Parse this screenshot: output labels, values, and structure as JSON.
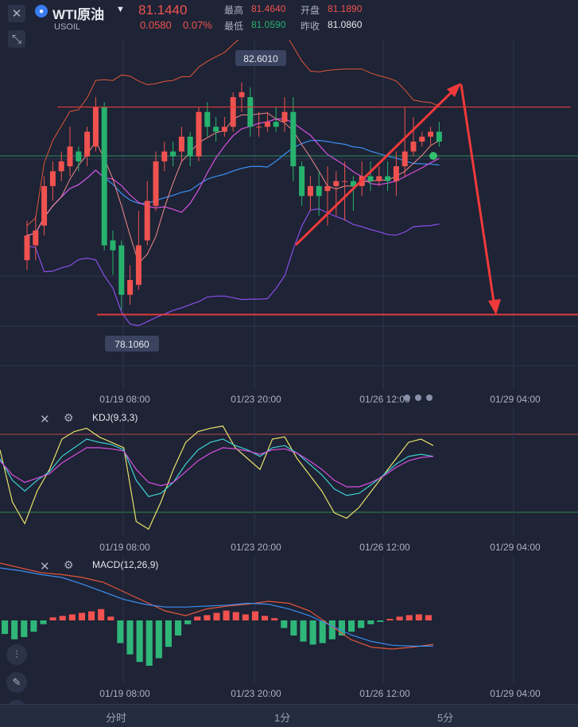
{
  "header": {
    "symbol": "WTI原油",
    "code": "USOIL",
    "price": "81.1440",
    "change": "0.0580",
    "change_pct": "0.07%",
    "high_label": "最高",
    "high": "81.4640",
    "open_label": "开盘",
    "open": "81.1890",
    "low_label": "最低",
    "low": "81.0590",
    "prev_label": "昨收",
    "prev": "81.0860"
  },
  "tabs": [
    "分时",
    "1分",
    "5分"
  ],
  "colors": {
    "up": "#f0524f",
    "down": "#27b26e",
    "bg": "#1e2335"
  },
  "chart_data": [
    {
      "type": "candlestick",
      "name": "main",
      "x_ticks": [
        "01/19 08:00",
        "01/23 20:00",
        "01/26 12:00",
        "01/29 04:00"
      ],
      "annotations": {
        "max_label": "82.6010",
        "min_label": "78.1060"
      },
      "horizontal_levels": {
        "upper": 82.4,
        "lower": 78.2
      },
      "candles": [
        {
          "o": 79.3,
          "c": 79.8,
          "h": 80.1,
          "l": 79.1
        },
        {
          "o": 79.6,
          "c": 79.9,
          "h": 80.2,
          "l": 79.3
        },
        {
          "o": 80.0,
          "c": 80.8,
          "h": 81.0,
          "l": 79.8
        },
        {
          "o": 80.8,
          "c": 81.1,
          "h": 81.3,
          "l": 80.5
        },
        {
          "o": 81.1,
          "c": 81.3,
          "h": 81.5,
          "l": 80.9
        },
        {
          "o": 81.2,
          "c": 81.6,
          "h": 82.0,
          "l": 81.0
        },
        {
          "o": 81.5,
          "c": 81.3,
          "h": 81.6,
          "l": 81.1
        },
        {
          "o": 81.4,
          "c": 81.9,
          "h": 82.0,
          "l": 81.2
        },
        {
          "o": 81.6,
          "c": 82.4,
          "h": 82.6,
          "l": 81.5
        },
        {
          "o": 82.4,
          "c": 79.6,
          "h": 82.5,
          "l": 79.5
        },
        {
          "o": 79.7,
          "c": 79.5,
          "h": 79.9,
          "l": 79.0
        },
        {
          "o": 79.6,
          "c": 78.6,
          "h": 79.7,
          "l": 78.3
        },
        {
          "o": 78.6,
          "c": 78.9,
          "h": 79.2,
          "l": 78.4
        },
        {
          "o": 78.8,
          "c": 79.6,
          "h": 80.3,
          "l": 78.7
        },
        {
          "o": 79.7,
          "c": 80.5,
          "h": 80.9,
          "l": 79.6
        },
        {
          "o": 80.4,
          "c": 81.3,
          "h": 81.5,
          "l": 80.3
        },
        {
          "o": 81.3,
          "c": 81.5,
          "h": 81.7,
          "l": 81.1
        },
        {
          "o": 81.5,
          "c": 81.4,
          "h": 81.7,
          "l": 81.2
        },
        {
          "o": 81.5,
          "c": 81.8,
          "h": 82.0,
          "l": 81.3
        },
        {
          "o": 81.8,
          "c": 81.4,
          "h": 81.9,
          "l": 81.2
        },
        {
          "o": 81.4,
          "c": 82.3,
          "h": 82.4,
          "l": 81.3
        },
        {
          "o": 82.3,
          "c": 82.0,
          "h": 82.5,
          "l": 81.8
        },
        {
          "o": 82.0,
          "c": 81.9,
          "h": 82.2,
          "l": 81.7
        },
        {
          "o": 81.9,
          "c": 82.0,
          "h": 82.2,
          "l": 81.8
        },
        {
          "o": 82.0,
          "c": 82.6,
          "h": 82.7,
          "l": 81.9
        },
        {
          "o": 82.6,
          "c": 82.7,
          "h": 82.9,
          "l": 82.3
        },
        {
          "o": 82.6,
          "c": 82.0,
          "h": 82.8,
          "l": 81.8
        },
        {
          "o": 82.0,
          "c": 82.0,
          "h": 82.3,
          "l": 81.8
        },
        {
          "o": 82.0,
          "c": 82.1,
          "h": 82.3,
          "l": 81.9
        },
        {
          "o": 82.1,
          "c": 82.0,
          "h": 82.4,
          "l": 81.9
        },
        {
          "o": 82.1,
          "c": 82.3,
          "h": 82.6,
          "l": 81.9
        },
        {
          "o": 82.3,
          "c": 81.2,
          "h": 82.6,
          "l": 80.9
        },
        {
          "o": 81.2,
          "c": 80.6,
          "h": 81.3,
          "l": 80.4
        },
        {
          "o": 80.6,
          "c": 80.8,
          "h": 81.0,
          "l": 80.3
        },
        {
          "o": 80.8,
          "c": 80.6,
          "h": 81.1,
          "l": 80.2
        },
        {
          "o": 80.7,
          "c": 80.8,
          "h": 81.2,
          "l": 80.0
        },
        {
          "o": 80.8,
          "c": 80.9,
          "h": 81.1,
          "l": 80.2
        },
        {
          "o": 80.9,
          "c": 80.9,
          "h": 81.3,
          "l": 80.1
        },
        {
          "o": 80.9,
          "c": 80.8,
          "h": 81.0,
          "l": 80.3
        },
        {
          "o": 80.8,
          "c": 81.0,
          "h": 81.3,
          "l": 80.6
        },
        {
          "o": 81.0,
          "c": 80.9,
          "h": 81.3,
          "l": 80.7
        },
        {
          "o": 80.9,
          "c": 81.0,
          "h": 81.2,
          "l": 80.8
        },
        {
          "o": 81.0,
          "c": 80.9,
          "h": 81.3,
          "l": 80.7
        },
        {
          "o": 80.9,
          "c": 81.2,
          "h": 81.5,
          "l": 80.6
        },
        {
          "o": 81.2,
          "c": 81.5,
          "h": 82.4,
          "l": 81.0
        },
        {
          "o": 81.5,
          "c": 81.7,
          "h": 82.2,
          "l": 81.4
        },
        {
          "o": 81.7,
          "c": 81.8,
          "h": 81.9,
          "l": 81.6
        },
        {
          "o": 81.8,
          "c": 81.9,
          "h": 82.0,
          "l": 81.6
        },
        {
          "o": 81.9,
          "c": 81.7,
          "h": 82.1,
          "l": 81.6
        }
      ]
    },
    {
      "type": "line",
      "name": "KDJ",
      "label": "KDJ(9,3,3)",
      "x_ticks": [
        "01/19 08:00",
        "01/23 20:00",
        "01/26 12:00",
        "01/29 04:00"
      ],
      "series": [
        {
          "color": "#e8e26a",
          "values": [
            78,
            30,
            10,
            40,
            60,
            88,
            95,
            98,
            90,
            85,
            80,
            12,
            5,
            30,
            60,
            85,
            95,
            98,
            100,
            80,
            70,
            60,
            88,
            90,
            70,
            55,
            40,
            20,
            15,
            25,
            40,
            55,
            70,
            85,
            88,
            82
          ]
        },
        {
          "color": "#3fd0d4",
          "values": [
            70,
            50,
            40,
            50,
            58,
            72,
            80,
            88,
            85,
            83,
            78,
            50,
            35,
            38,
            48,
            65,
            78,
            85,
            88,
            82,
            78,
            72,
            80,
            82,
            75,
            65,
            55,
            42,
            36,
            38,
            46,
            55,
            65,
            72,
            74,
            72
          ]
        },
        {
          "color": "#d84fe0",
          "values": [
            68,
            55,
            48,
            52,
            56,
            66,
            73,
            80,
            80,
            79,
            77,
            60,
            48,
            45,
            48,
            58,
            68,
            75,
            80,
            79,
            77,
            74,
            78,
            79,
            75,
            68,
            60,
            50,
            44,
            44,
            48,
            54,
            62,
            68,
            71,
            72
          ]
        }
      ]
    },
    {
      "type": "bar",
      "name": "MACD",
      "label": "MACD(12,26,9)",
      "x_ticks": [
        "01/19 08:00",
        "01/23 20:00",
        "01/26 12:00",
        "01/29 04:00"
      ],
      "histogram": [
        -0.18,
        -0.25,
        -0.22,
        -0.15,
        -0.05,
        0.04,
        0.06,
        0.08,
        0.1,
        0.12,
        0.15,
        0.05,
        -0.3,
        -0.45,
        -0.55,
        -0.6,
        -0.5,
        -0.35,
        -0.2,
        -0.05,
        0.05,
        0.07,
        0.1,
        0.13,
        0.11,
        0.08,
        0.12,
        0.06,
        0.03,
        -0.1,
        -0.2,
        -0.28,
        -0.32,
        -0.3,
        -0.25,
        -0.2,
        -0.15,
        -0.1,
        -0.05,
        -0.02,
        0.02,
        0.05,
        0.07,
        0.08,
        0.07
      ],
      "dif": [
        0.6,
        0.55,
        0.5,
        0.48,
        0.45,
        0.4,
        0.3,
        0.2,
        0.1,
        0.05,
        0.12,
        0.15,
        0.17,
        0.2,
        0.18,
        0.1,
        -0.05,
        -0.2,
        -0.28,
        -0.3,
        -0.28,
        -0.25
      ],
      "dea": [
        0.55,
        0.52,
        0.48,
        0.45,
        0.38,
        0.3,
        0.22,
        0.17,
        0.14,
        0.14,
        0.15,
        0.16,
        0.18,
        0.17,
        0.12,
        0.05,
        -0.05,
        -0.15,
        -0.22,
        -0.26,
        -0.27,
        -0.27
      ]
    }
  ]
}
